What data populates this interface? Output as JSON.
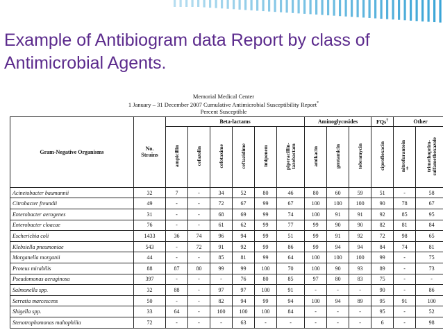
{
  "slide": {
    "title": "Example of Antibiogram data Report by class of Antimicrobial Agents.",
    "accent_color": "#5b2a8c",
    "stripe_color": "#2e9fd4"
  },
  "report": {
    "center": "Memorial Medical Center",
    "subtitle": "1 January – 31 December 2007   Cumulative Antimicrobial Susceptibility Report",
    "subtitle_mark": "*",
    "subtitle2": "Percent Susceptible"
  },
  "table": {
    "organism_header": "Gram-Negative Organisms",
    "strains_header": "No.\nStrains",
    "groups": [
      "Beta-lactams",
      "Aminoglycosides",
      "FQs",
      "Other"
    ],
    "fq_mark": "†",
    "drugs": [
      "ampicillin",
      "cefazolin",
      "cefotaxime",
      "ceftazidime",
      "imipenem",
      "piperacillin-\ntazobactam",
      "amikacin",
      "gentamicin",
      "tobramycin",
      "ciprofloxacin",
      "nitrofurantoin",
      "trimethoprim-\nsulfamethoxazole"
    ],
    "nitro_mark": "‡",
    "rows": [
      {
        "organism": "Acinetobacter baumannii",
        "strains": "32",
        "values": [
          "7",
          "-",
          "34",
          "52",
          "80",
          "46",
          "80",
          "60",
          "59",
          "51",
          "-",
          "58"
        ]
      },
      {
        "organism": "Citrobacter freundii",
        "strains": "49",
        "values": [
          "-",
          "-",
          "72",
          "67",
          "99",
          "67",
          "100",
          "100",
          "100",
          "90",
          "78",
          "67"
        ]
      },
      {
        "organism": "Enterobacter aerogenes",
        "strains": "31",
        "values": [
          "-",
          "-",
          "68",
          "69",
          "99",
          "74",
          "100",
          "91",
          "91",
          "92",
          "85",
          "95"
        ]
      },
      {
        "organism": "Enterobacter cloacae",
        "strains": "76",
        "values": [
          "-",
          "-",
          "61",
          "62",
          "99",
          "77",
          "99",
          "90",
          "90",
          "82",
          "81",
          "84"
        ]
      },
      {
        "organism": "Escherichia coli",
        "strains": "1433",
        "values": [
          "36",
          "74",
          "96",
          "94",
          "99",
          "51",
          "99",
          "91",
          "92",
          "72",
          "98",
          "65"
        ]
      },
      {
        "organism": "Klebsiella pneumoniae",
        "strains": "543",
        "values": [
          "-",
          "72",
          "91",
          "92",
          "99",
          "86",
          "99",
          "94",
          "94",
          "84",
          "74",
          "81"
        ]
      },
      {
        "organism": "Morganella morganii",
        "strains": "44",
        "values": [
          "-",
          "-",
          "85",
          "81",
          "99",
          "64",
          "100",
          "100",
          "100",
          "99",
          "-",
          "75"
        ]
      },
      {
        "organism": "Proteus mirabilis",
        "strains": "88",
        "values": [
          "87",
          "80",
          "99",
          "99",
          "100",
          "70",
          "100",
          "90",
          "93",
          "89",
          "-",
          "73"
        ]
      },
      {
        "organism": "Pseudomonas aeruginosa",
        "strains": "397",
        "values": [
          "-",
          "-",
          "-",
          "76",
          "80",
          "85",
          "97",
          "80",
          "83",
          "75",
          "-",
          "-"
        ]
      },
      {
        "organism": "Salmonella spp.",
        "strains": "32",
        "values": [
          "88",
          "-",
          "97",
          "97",
          "100",
          "91",
          "-",
          "-",
          "-",
          "90",
          "-",
          "86"
        ]
      },
      {
        "organism": "Serratia marcescens",
        "strains": "50",
        "values": [
          "-",
          "-",
          "82",
          "94",
          "99",
          "94",
          "100",
          "94",
          "89",
          "95",
          "91",
          "100"
        ]
      },
      {
        "organism": "Shigella spp.",
        "strains": "33",
        "values": [
          "64",
          "-",
          "100",
          "100",
          "100",
          "84",
          "-",
          "-",
          "-",
          "95",
          "-",
          "52"
        ]
      },
      {
        "organism": "Stenotrophomonas maltophilia",
        "strains": "72",
        "values": [
          "-",
          "-",
          "-",
          "63",
          "-",
          "-",
          "-",
          "-",
          "-",
          "6",
          "-",
          "98"
        ]
      }
    ]
  }
}
